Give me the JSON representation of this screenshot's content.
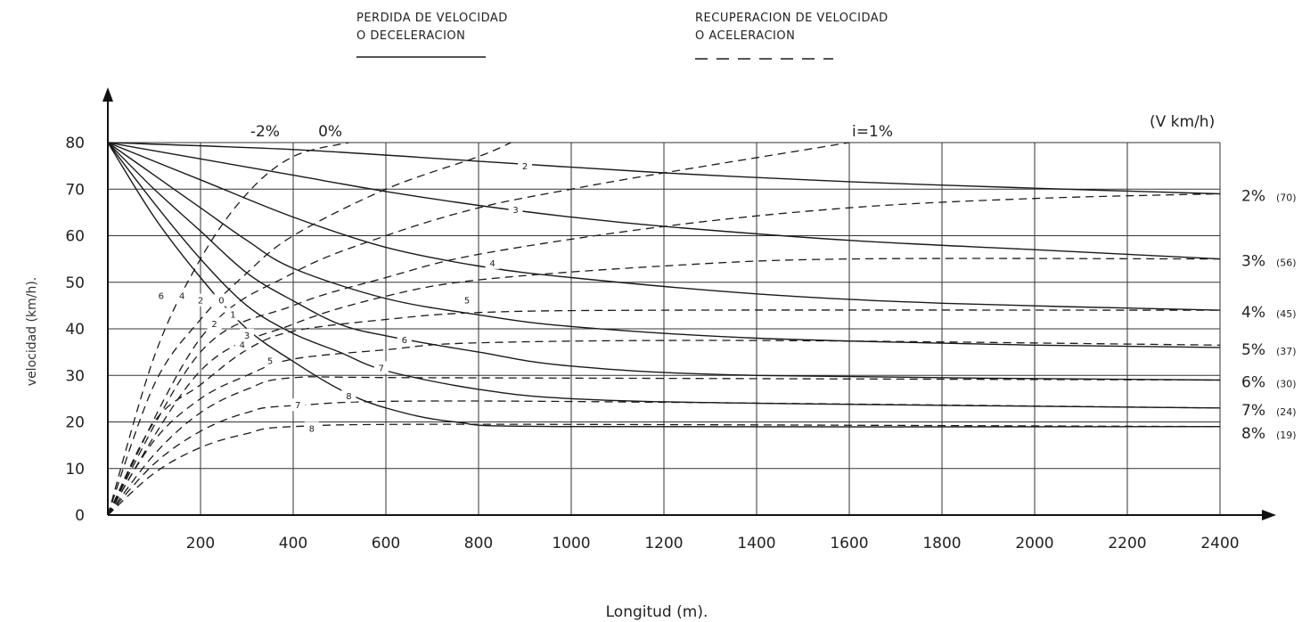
{
  "legend": {
    "decel_line1": "PERDIDA DE VELOCIDAD",
    "decel_line2": "O DECELERACION",
    "accel_line1": "RECUPERACION DE VELOCIDAD",
    "accel_line2": "O ACELERACION"
  },
  "chart_data": {
    "type": "line",
    "xlabel": "Longitud (m).",
    "ylabel": "velocidad (km/h).",
    "units_label": "(V km/h)",
    "xlim": [
      0,
      2400
    ],
    "ylim": [
      0,
      80
    ],
    "x_ticks": [
      200,
      400,
      600,
      800,
      1000,
      1200,
      1400,
      1600,
      1800,
      2000,
      2200,
      2400
    ],
    "y_ticks": [
      0,
      10,
      20,
      30,
      40,
      50,
      60,
      70,
      80
    ],
    "grid": true,
    "top_labels": [
      "-2%",
      "0%",
      "i=1%"
    ],
    "grade_labels": [
      {
        "grade": "2%",
        "v": "(70)",
        "y": 69
      },
      {
        "grade": "3%",
        "v": "(56)",
        "y": 55
      },
      {
        "grade": "4%",
        "v": "(45)",
        "y": 44
      },
      {
        "grade": "5%",
        "v": "(37)",
        "y": 36
      },
      {
        "grade": "6%",
        "v": "(30)",
        "y": 29
      },
      {
        "grade": "7%",
        "v": "(24)",
        "y": 23
      },
      {
        "grade": "8%",
        "v": "(19)",
        "y": 18
      }
    ],
    "deceleration_curves": [
      {
        "name": "2",
        "label_at": [
          900,
          74.8
        ],
        "points": [
          [
            0,
            80
          ],
          [
            400,
            78.5
          ],
          [
            800,
            76
          ],
          [
            1200,
            73.5
          ],
          [
            1600,
            71.6
          ],
          [
            2000,
            70.2
          ],
          [
            2400,
            69
          ]
        ]
      },
      {
        "name": "3",
        "label_at": [
          880,
          65.5
        ],
        "points": [
          [
            0,
            80
          ],
          [
            200,
            76.5
          ],
          [
            400,
            73
          ],
          [
            600,
            69.5
          ],
          [
            800,
            66.5
          ],
          [
            1000,
            64
          ],
          [
            1200,
            62
          ],
          [
            1600,
            59
          ],
          [
            2000,
            57
          ],
          [
            2400,
            55
          ]
        ]
      },
      {
        "name": "4",
        "label_at": [
          830,
          54
        ],
        "points": [
          [
            0,
            80
          ],
          [
            200,
            72
          ],
          [
            400,
            64
          ],
          [
            600,
            57.5
          ],
          [
            800,
            53.5
          ],
          [
            1000,
            51
          ],
          [
            1400,
            47.5
          ],
          [
            1800,
            45.5
          ],
          [
            2400,
            44
          ]
        ]
      },
      {
        "name": "5",
        "label_at": [
          775,
          46
        ],
        "points": [
          [
            0,
            80
          ],
          [
            100,
            73
          ],
          [
            200,
            66
          ],
          [
            300,
            59
          ],
          [
            400,
            53
          ],
          [
            600,
            46.5
          ],
          [
            800,
            43
          ],
          [
            1000,
            40.5
          ],
          [
            1400,
            38
          ],
          [
            2000,
            36.5
          ],
          [
            2400,
            36
          ]
        ]
      },
      {
        "name": "6",
        "label_at": [
          640,
          37.5
        ],
        "points": [
          [
            0,
            80
          ],
          [
            100,
            70
          ],
          [
            200,
            61
          ],
          [
            300,
            52
          ],
          [
            400,
            46
          ],
          [
            500,
            41
          ],
          [
            600,
            38.5
          ],
          [
            800,
            35
          ],
          [
            1000,
            32
          ],
          [
            1400,
            30
          ],
          [
            2400,
            29
          ]
        ]
      },
      {
        "name": "7",
        "label_at": [
          590,
          31.5
        ],
        "points": [
          [
            0,
            80
          ],
          [
            100,
            67
          ],
          [
            200,
            55
          ],
          [
            300,
            45
          ],
          [
            400,
            39
          ],
          [
            500,
            35
          ],
          [
            600,
            31
          ],
          [
            800,
            27
          ],
          [
            1000,
            25
          ],
          [
            1400,
            24
          ],
          [
            2400,
            23
          ]
        ]
      },
      {
        "name": "8",
        "label_at": [
          520,
          25.5
        ],
        "points": [
          [
            0,
            80
          ],
          [
            100,
            64
          ],
          [
            200,
            51
          ],
          [
            300,
            40
          ],
          [
            400,
            33
          ],
          [
            500,
            27
          ],
          [
            600,
            23
          ],
          [
            750,
            20
          ],
          [
            1000,
            19
          ],
          [
            2400,
            19
          ]
        ]
      }
    ],
    "acceleration_curves": [
      {
        "name": "-2%",
        "label_at": null,
        "points": [
          [
            0,
            0
          ],
          [
            100,
            34
          ],
          [
            200,
            55
          ],
          [
            300,
            69
          ],
          [
            400,
            77
          ],
          [
            520,
            80
          ]
        ]
      },
      {
        "name": "0%",
        "label_at": null,
        "points": [
          [
            0,
            0
          ],
          [
            100,
            28
          ],
          [
            200,
            42
          ],
          [
            300,
            52
          ],
          [
            400,
            60
          ],
          [
            600,
            70
          ],
          [
            800,
            77
          ],
          [
            870,
            80
          ]
        ]
      },
      {
        "name": "1%",
        "label_at": null,
        "points": [
          [
            0,
            0
          ],
          [
            200,
            38
          ],
          [
            400,
            52
          ],
          [
            600,
            60
          ],
          [
            800,
            66
          ],
          [
            1000,
            70
          ],
          [
            1200,
            73.5
          ],
          [
            1600,
            80
          ]
        ]
      },
      {
        "name": "2",
        "label_at": null,
        "points": [
          [
            0,
            0
          ],
          [
            200,
            35
          ],
          [
            400,
            45
          ],
          [
            600,
            51
          ],
          [
            800,
            56
          ],
          [
            1200,
            62
          ],
          [
            1600,
            66
          ],
          [
            2000,
            68
          ],
          [
            2400,
            69
          ]
        ]
      },
      {
        "name": "3",
        "label_at": null,
        "points": [
          [
            0,
            0
          ],
          [
            200,
            31
          ],
          [
            400,
            41
          ],
          [
            600,
            47
          ],
          [
            800,
            50.5
          ],
          [
            1200,
            53.5
          ],
          [
            1600,
            55
          ],
          [
            2400,
            55
          ]
        ]
      },
      {
        "name": "4",
        "label_at": [
          290,
          36.5
        ],
        "points": [
          [
            0,
            0
          ],
          [
            100,
            20
          ],
          [
            200,
            28
          ],
          [
            300,
            35.5
          ],
          [
            400,
            39.5
          ],
          [
            600,
            42
          ],
          [
            800,
            43.5
          ],
          [
            1200,
            44
          ],
          [
            2400,
            44
          ]
        ]
      },
      {
        "name": "5",
        "label_at": [
          350,
          33
        ],
        "points": [
          [
            0,
            0
          ],
          [
            100,
            16
          ],
          [
            200,
            25
          ],
          [
            300,
            30
          ],
          [
            400,
            33.5
          ],
          [
            600,
            35.5
          ],
          [
            800,
            37
          ],
          [
            1400,
            37.5
          ],
          [
            2400,
            36.5
          ]
        ]
      },
      {
        "name": "6",
        "label_at": null,
        "points": [
          [
            0,
            0
          ],
          [
            100,
            13
          ],
          [
            200,
            22
          ],
          [
            300,
            27
          ],
          [
            400,
            29.5
          ],
          [
            700,
            29.5
          ],
          [
            2400,
            29
          ]
        ]
      },
      {
        "name": "7",
        "label_at": [
          410,
          23.5
        ],
        "points": [
          [
            0,
            0
          ],
          [
            100,
            11
          ],
          [
            200,
            18
          ],
          [
            300,
            22
          ],
          [
            400,
            23.5
          ],
          [
            800,
            24.5
          ],
          [
            2400,
            23
          ]
        ]
      },
      {
        "name": "8",
        "label_at": [
          440,
          18.5
        ],
        "points": [
          [
            0,
            0
          ],
          [
            100,
            9
          ],
          [
            200,
            14.5
          ],
          [
            300,
            17.5
          ],
          [
            400,
            19
          ],
          [
            800,
            19.5
          ],
          [
            2400,
            19
          ]
        ]
      }
    ],
    "fan_labels": [
      {
        "text": "6",
        "at": [
          115,
          47
        ]
      },
      {
        "text": "4",
        "at": [
          160,
          47
        ]
      },
      {
        "text": "2",
        "at": [
          200,
          46
        ]
      },
      {
        "text": "0",
        "at": [
          245,
          46
        ]
      },
      {
        "text": "1",
        "at": [
          270,
          43
        ]
      },
      {
        "text": "2",
        "at": [
          230,
          41
        ]
      },
      {
        "text": "3",
        "at": [
          300,
          38.5
        ]
      }
    ]
  }
}
